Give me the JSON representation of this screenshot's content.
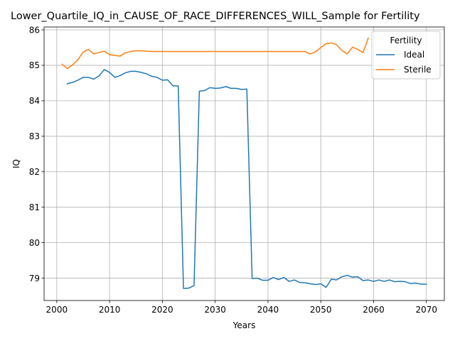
{
  "chart_data": {
    "type": "line",
    "title": "Lower_Quartile_IQ_in_CAUSE_OF_RACE_DIFFERENCES_WILL_Sample for Fertility",
    "xlabel": "Years",
    "ylabel": "IQ",
    "xlim": [
      1997.6,
      2073.4
    ],
    "ylim": [
      78.37,
      86.08
    ],
    "xticks": [
      2000,
      2010,
      2020,
      2030,
      2040,
      2050,
      2060,
      2070
    ],
    "yticks": [
      79,
      80,
      81,
      82,
      83,
      84,
      85,
      86
    ],
    "grid": true,
    "legend": {
      "title": "Fertility",
      "placement": "upper right"
    },
    "series": [
      {
        "name": "Ideal",
        "color": "#1f77b4",
        "x": [
          2002,
          2003,
          2004,
          2005,
          2006,
          2007,
          2008,
          2009,
          2010,
          2011,
          2012,
          2013,
          2014,
          2015,
          2016,
          2017,
          2018,
          2019,
          2020,
          2021,
          2022,
          2023,
          2024,
          2025,
          2026,
          2027,
          2028,
          2029,
          2030,
          2031,
          2032,
          2033,
          2034,
          2035,
          2036,
          2037,
          2038,
          2039,
          2040,
          2041,
          2042,
          2043,
          2044,
          2045,
          2046,
          2047,
          2048,
          2049,
          2050,
          2051,
          2052,
          2053,
          2054,
          2055,
          2056,
          2057,
          2058,
          2059,
          2060,
          2061,
          2062,
          2063,
          2064,
          2065,
          2066,
          2067,
          2068,
          2069,
          2070
        ],
        "y": [
          84.48,
          84.52,
          84.58,
          84.66,
          84.66,
          84.61,
          84.7,
          84.88,
          84.8,
          84.66,
          84.71,
          84.79,
          84.83,
          84.83,
          84.8,
          84.76,
          84.69,
          84.66,
          84.58,
          84.59,
          84.42,
          84.42,
          78.71,
          78.72,
          78.79,
          84.27,
          84.29,
          84.37,
          84.35,
          84.36,
          84.4,
          84.35,
          84.35,
          84.32,
          84.33,
          78.99,
          79.0,
          78.94,
          78.94,
          79.02,
          78.96,
          79.02,
          78.91,
          78.95,
          78.88,
          78.87,
          78.84,
          78.82,
          78.84,
          78.74,
          78.97,
          78.95,
          79.04,
          79.08,
          79.03,
          79.04,
          78.93,
          78.95,
          78.91,
          78.95,
          78.91,
          78.95,
          78.9,
          78.91,
          78.9,
          78.85,
          78.86,
          78.83,
          78.83
        ]
      },
      {
        "name": "Sterile",
        "color": "#ff7f0e",
        "x": [
          2001,
          2002,
          2003,
          2004,
          2005,
          2006,
          2007,
          2008,
          2009,
          2010,
          2011,
          2012,
          2013,
          2014,
          2015,
          2016,
          2017,
          2018,
          2019,
          2020,
          2021,
          2022,
          2023,
          2024,
          2025,
          2026,
          2027,
          2028,
          2029,
          2030,
          2031,
          2032,
          2033,
          2034,
          2035,
          2036,
          2037,
          2038,
          2039,
          2040,
          2041,
          2042,
          2043,
          2044,
          2045,
          2046,
          2047,
          2048,
          2049,
          2050,
          2051,
          2052,
          2053,
          2054,
          2055,
          2056,
          2057,
          2058,
          2059
        ],
        "y": [
          85.03,
          84.91,
          85.01,
          85.16,
          85.37,
          85.45,
          85.32,
          85.36,
          85.4,
          85.3,
          85.28,
          85.26,
          85.35,
          85.39,
          85.41,
          85.41,
          85.4,
          85.39,
          85.39,
          85.39,
          85.39,
          85.39,
          85.39,
          85.39,
          85.39,
          85.39,
          85.39,
          85.39,
          85.39,
          85.39,
          85.39,
          85.39,
          85.39,
          85.39,
          85.39,
          85.39,
          85.39,
          85.39,
          85.39,
          85.39,
          85.39,
          85.39,
          85.39,
          85.39,
          85.39,
          85.39,
          85.39,
          85.32,
          85.38,
          85.5,
          85.61,
          85.63,
          85.58,
          85.42,
          85.32,
          85.51,
          85.45,
          85.36,
          85.77
        ]
      }
    ]
  }
}
